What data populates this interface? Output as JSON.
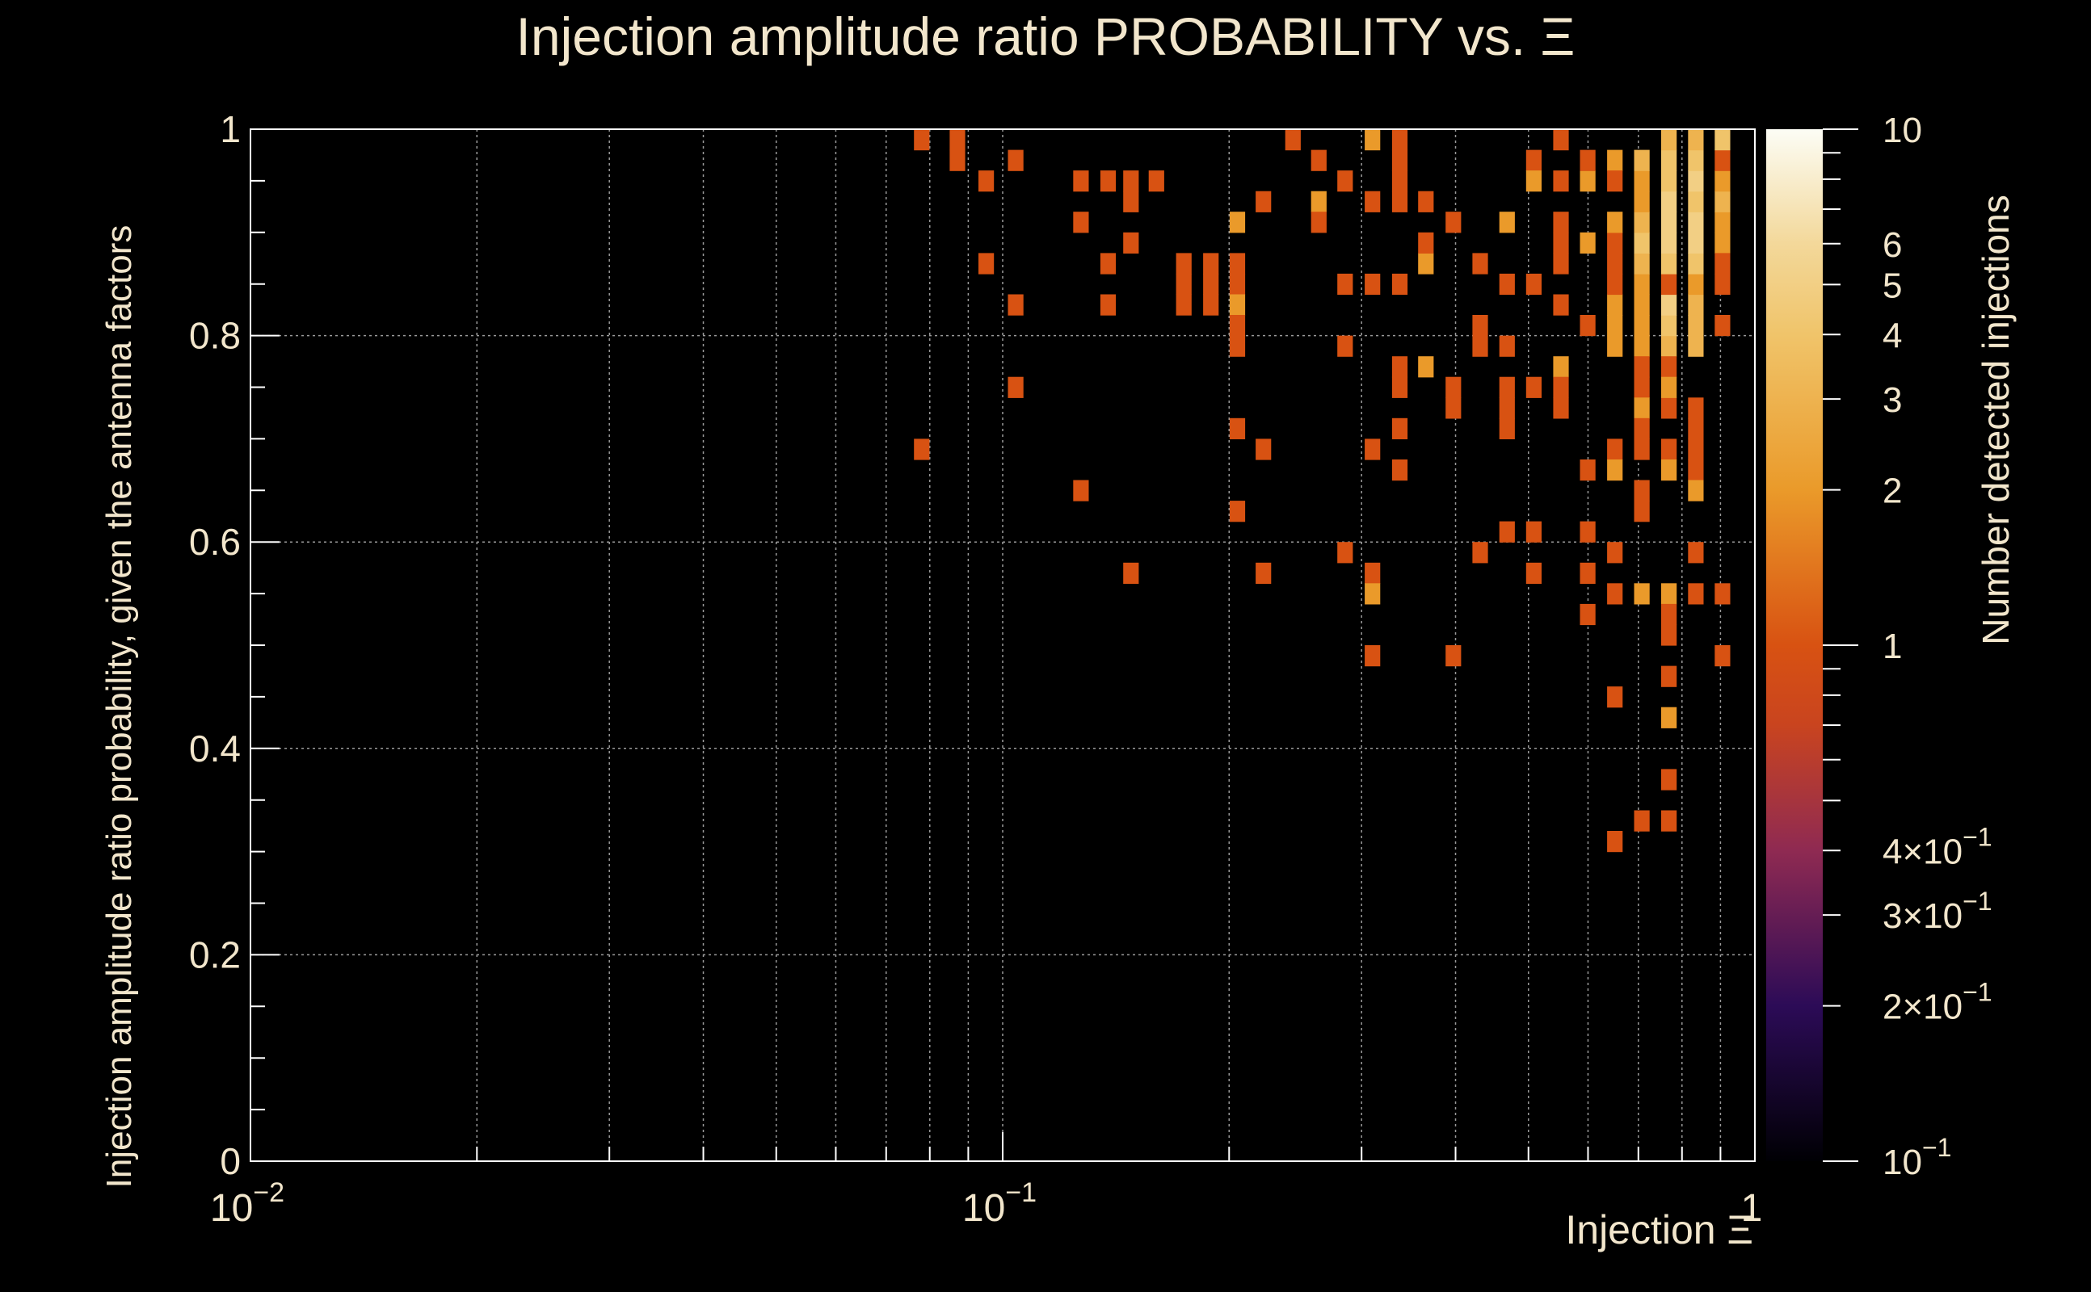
{
  "chart_data": {
    "type": "heatmap",
    "title": "Injection amplitude ratio PROBABILITY vs. Ξ",
    "xlabel": "Injection Ξ",
    "ylabel": "Injection amplitude ratio probability, given the antenna factors",
    "colorbar_label": "Number detected injections",
    "x_scale": "log",
    "xlim": [
      0.01,
      1
    ],
    "ylim": [
      0,
      1
    ],
    "z_scale": "log",
    "zlim": [
      0.1,
      10
    ],
    "x_bins_per_decade": 50,
    "y_bin_width": 0.02,
    "grid": true,
    "x_ticks": [
      {
        "value": 0.01,
        "base": "10",
        "exp": "−2"
      },
      {
        "value": 0.1,
        "base": "10",
        "exp": "−1"
      },
      {
        "value": 1,
        "base": "1",
        "exp": ""
      }
    ],
    "y_ticks": [
      {
        "value": 0,
        "label": "0"
      },
      {
        "value": 0.2,
        "label": "0.2"
      },
      {
        "value": 0.4,
        "label": "0.4"
      },
      {
        "value": 0.6,
        "label": "0.6"
      },
      {
        "value": 0.8,
        "label": "0.8"
      },
      {
        "value": 1,
        "label": "1"
      }
    ],
    "colorbar_ticks": [
      {
        "value": 10,
        "label": "10",
        "exp": ""
      },
      {
        "value": 6,
        "label": "6",
        "exp": ""
      },
      {
        "value": 5,
        "label": "5",
        "exp": ""
      },
      {
        "value": 4,
        "label": "4",
        "exp": ""
      },
      {
        "value": 3,
        "label": "3",
        "exp": ""
      },
      {
        "value": 2,
        "label": "2",
        "exp": ""
      },
      {
        "value": 1,
        "label": "1",
        "exp": ""
      },
      {
        "value": 0.4,
        "label": "4×10",
        "exp": "−1"
      },
      {
        "value": 0.3,
        "label": "3×10",
        "exp": "−1"
      },
      {
        "value": 0.2,
        "label": "2×10",
        "exp": "−1"
      },
      {
        "value": 0.1,
        "label": "10",
        "exp": "−1"
      }
    ],
    "colormap": [
      [
        0.1,
        "#000004"
      ],
      [
        0.2,
        "#2c0b57"
      ],
      [
        0.4,
        "#8f2a52"
      ],
      [
        0.7,
        "#c9441f"
      ],
      [
        1,
        "#d85212"
      ],
      [
        2,
        "#ea9a2a"
      ],
      [
        4,
        "#f0c46a"
      ],
      [
        6,
        "#f3d89a"
      ],
      [
        10,
        "#fcfdf5"
      ]
    ],
    "cells": [
      [
        0.078,
        0.99,
        1
      ],
      [
        0.087,
        0.99,
        1
      ],
      [
        0.087,
        0.97,
        1
      ],
      [
        0.095,
        0.95,
        1
      ],
      [
        0.104,
        0.97,
        1
      ],
      [
        0.127,
        0.95,
        1
      ],
      [
        0.138,
        0.95,
        1
      ],
      [
        0.148,
        0.95,
        1
      ],
      [
        0.16,
        0.95,
        1
      ],
      [
        0.148,
        0.93,
        1
      ],
      [
        0.127,
        0.91,
        1
      ],
      [
        0.148,
        0.89,
        1
      ],
      [
        0.095,
        0.87,
        1
      ],
      [
        0.138,
        0.87,
        1
      ],
      [
        0.174,
        0.87,
        1
      ],
      [
        0.189,
        0.87,
        1
      ],
      [
        0.205,
        0.87,
        1
      ],
      [
        0.174,
        0.85,
        1
      ],
      [
        0.189,
        0.85,
        1
      ],
      [
        0.205,
        0.85,
        1
      ],
      [
        0.174,
        0.83,
        1
      ],
      [
        0.189,
        0.83,
        1
      ],
      [
        0.205,
        0.83,
        2
      ],
      [
        0.104,
        0.83,
        1
      ],
      [
        0.138,
        0.83,
        1
      ],
      [
        0.205,
        0.81,
        1
      ],
      [
        0.205,
        0.79,
        1
      ],
      [
        0.205,
        0.91,
        2
      ],
      [
        0.222,
        0.93,
        1
      ],
      [
        0.243,
        0.99,
        1
      ],
      [
        0.263,
        0.97,
        1
      ],
      [
        0.263,
        0.93,
        2
      ],
      [
        0.263,
        0.91,
        1
      ],
      [
        0.285,
        0.95,
        1
      ],
      [
        0.31,
        0.99,
        2
      ],
      [
        0.337,
        0.99,
        1
      ],
      [
        0.337,
        0.97,
        1
      ],
      [
        0.337,
        0.95,
        1
      ],
      [
        0.31,
        0.93,
        1
      ],
      [
        0.337,
        0.93,
        1
      ],
      [
        0.365,
        0.93,
        1
      ],
      [
        0.285,
        0.85,
        1
      ],
      [
        0.31,
        0.85,
        1
      ],
      [
        0.337,
        0.85,
        1
      ],
      [
        0.365,
        0.87,
        2
      ],
      [
        0.365,
        0.89,
        1
      ],
      [
        0.397,
        0.91,
        1
      ],
      [
        0.285,
        0.79,
        1
      ],
      [
        0.337,
        0.77,
        1
      ],
      [
        0.365,
        0.77,
        2
      ],
      [
        0.337,
        0.75,
        1
      ],
      [
        0.397,
        0.75,
        1
      ],
      [
        0.397,
        0.73,
        1
      ],
      [
        0.431,
        0.81,
        1
      ],
      [
        0.431,
        0.79,
        1
      ],
      [
        0.468,
        0.79,
        1
      ],
      [
        0.431,
        0.87,
        1
      ],
      [
        0.468,
        0.91,
        2
      ],
      [
        0.468,
        0.85,
        1
      ],
      [
        0.468,
        0.75,
        1
      ],
      [
        0.468,
        0.73,
        1
      ],
      [
        0.468,
        0.71,
        1
      ],
      [
        0.508,
        0.75,
        1
      ],
      [
        0.552,
        0.77,
        2
      ],
      [
        0.552,
        0.75,
        1
      ],
      [
        0.552,
        0.73,
        1
      ],
      [
        0.508,
        0.97,
        1
      ],
      [
        0.508,
        0.95,
        2
      ],
      [
        0.552,
        0.99,
        1
      ],
      [
        0.552,
        0.95,
        1
      ],
      [
        0.599,
        0.95,
        2
      ],
      [
        0.599,
        0.97,
        1
      ],
      [
        0.651,
        0.97,
        2
      ],
      [
        0.651,
        0.95,
        1
      ],
      [
        0.552,
        0.91,
        1
      ],
      [
        0.552,
        0.89,
        1
      ],
      [
        0.552,
        0.87,
        1
      ],
      [
        0.599,
        0.89,
        2
      ],
      [
        0.651,
        0.89,
        1
      ],
      [
        0.651,
        0.91,
        2
      ],
      [
        0.508,
        0.85,
        1
      ],
      [
        0.552,
        0.83,
        1
      ],
      [
        0.599,
        0.81,
        1
      ],
      [
        0.651,
        0.81,
        2
      ],
      [
        0.651,
        0.83,
        2
      ],
      [
        0.651,
        0.85,
        1
      ],
      [
        0.651,
        0.87,
        1
      ],
      [
        0.651,
        0.79,
        2
      ],
      [
        0.707,
        0.79,
        2
      ],
      [
        0.768,
        0.79,
        3
      ],
      [
        0.834,
        0.79,
        3
      ],
      [
        0.707,
        0.81,
        2
      ],
      [
        0.768,
        0.81,
        4
      ],
      [
        0.834,
        0.81,
        3
      ],
      [
        0.707,
        0.83,
        2
      ],
      [
        0.768,
        0.83,
        5
      ],
      [
        0.834,
        0.83,
        3
      ],
      [
        0.707,
        0.85,
        2
      ],
      [
        0.768,
        0.85,
        1
      ],
      [
        0.834,
        0.85,
        2
      ],
      [
        0.707,
        0.87,
        3
      ],
      [
        0.768,
        0.87,
        4
      ],
      [
        0.834,
        0.87,
        4
      ],
      [
        0.707,
        0.89,
        4
      ],
      [
        0.768,
        0.89,
        5
      ],
      [
        0.834,
        0.89,
        5
      ],
      [
        0.905,
        0.89,
        2
      ],
      [
        0.707,
        0.91,
        3
      ],
      [
        0.768,
        0.91,
        5
      ],
      [
        0.834,
        0.91,
        5
      ],
      [
        0.905,
        0.91,
        2
      ],
      [
        0.707,
        0.93,
        2
      ],
      [
        0.768,
        0.93,
        5
      ],
      [
        0.834,
        0.93,
        4
      ],
      [
        0.905,
        0.93,
        3
      ],
      [
        0.707,
        0.95,
        2
      ],
      [
        0.768,
        0.95,
        4
      ],
      [
        0.834,
        0.95,
        5
      ],
      [
        0.905,
        0.95,
        2
      ],
      [
        0.707,
        0.97,
        3
      ],
      [
        0.768,
        0.97,
        4
      ],
      [
        0.834,
        0.97,
        4
      ],
      [
        0.905,
        0.97,
        1
      ],
      [
        0.768,
        0.99,
        3
      ],
      [
        0.834,
        0.99,
        3
      ],
      [
        0.905,
        0.99,
        4
      ],
      [
        0.905,
        0.87,
        1
      ],
      [
        0.905,
        0.85,
        1
      ],
      [
        0.905,
        0.81,
        1
      ],
      [
        0.707,
        0.77,
        1
      ],
      [
        0.768,
        0.77,
        1
      ],
      [
        0.707,
        0.75,
        1
      ],
      [
        0.707,
        0.73,
        2
      ],
      [
        0.768,
        0.73,
        1
      ],
      [
        0.707,
        0.71,
        1
      ],
      [
        0.768,
        0.75,
        2
      ],
      [
        0.834,
        0.73,
        1
      ],
      [
        0.834,
        0.71,
        1
      ],
      [
        0.651,
        0.69,
        1
      ],
      [
        0.707,
        0.69,
        1
      ],
      [
        0.768,
        0.69,
        1
      ],
      [
        0.834,
        0.69,
        1
      ],
      [
        0.599,
        0.67,
        1
      ],
      [
        0.651,
        0.67,
        2
      ],
      [
        0.768,
        0.67,
        2
      ],
      [
        0.834,
        0.67,
        1
      ],
      [
        0.834,
        0.65,
        2
      ],
      [
        0.707,
        0.65,
        1
      ],
      [
        0.707,
        0.63,
        1
      ],
      [
        0.468,
        0.61,
        1
      ],
      [
        0.508,
        0.61,
        1
      ],
      [
        0.599,
        0.61,
        1
      ],
      [
        0.651,
        0.59,
        1
      ],
      [
        0.834,
        0.59,
        1
      ],
      [
        0.431,
        0.59,
        1
      ],
      [
        0.508,
        0.57,
        1
      ],
      [
        0.599,
        0.57,
        1
      ],
      [
        0.651,
        0.55,
        1
      ],
      [
        0.707,
        0.55,
        2
      ],
      [
        0.768,
        0.55,
        2
      ],
      [
        0.834,
        0.55,
        1
      ],
      [
        0.905,
        0.55,
        1
      ],
      [
        0.599,
        0.53,
        1
      ],
      [
        0.768,
        0.53,
        1
      ],
      [
        0.768,
        0.51,
        1
      ],
      [
        0.905,
        0.49,
        1
      ],
      [
        0.768,
        0.47,
        1
      ],
      [
        0.651,
        0.45,
        1
      ],
      [
        0.768,
        0.43,
        2
      ],
      [
        0.768,
        0.37,
        1
      ],
      [
        0.707,
        0.33,
        1
      ],
      [
        0.768,
        0.33,
        1
      ],
      [
        0.651,
        0.31,
        1
      ],
      [
        0.285,
        0.59,
        1
      ],
      [
        0.31,
        0.57,
        1
      ],
      [
        0.31,
        0.55,
        2
      ],
      [
        0.31,
        0.49,
        1
      ],
      [
        0.397,
        0.49,
        1
      ],
      [
        0.148,
        0.57,
        1
      ],
      [
        0.222,
        0.57,
        1
      ],
      [
        0.205,
        0.63,
        1
      ],
      [
        0.127,
        0.65,
        1
      ],
      [
        0.078,
        0.69,
        1
      ],
      [
        0.205,
        0.71,
        1
      ],
      [
        0.222,
        0.69,
        1
      ],
      [
        0.31,
        0.69,
        1
      ],
      [
        0.337,
        0.71,
        1
      ],
      [
        0.337,
        0.67,
        1
      ],
      [
        0.104,
        0.75,
        1
      ]
    ]
  }
}
